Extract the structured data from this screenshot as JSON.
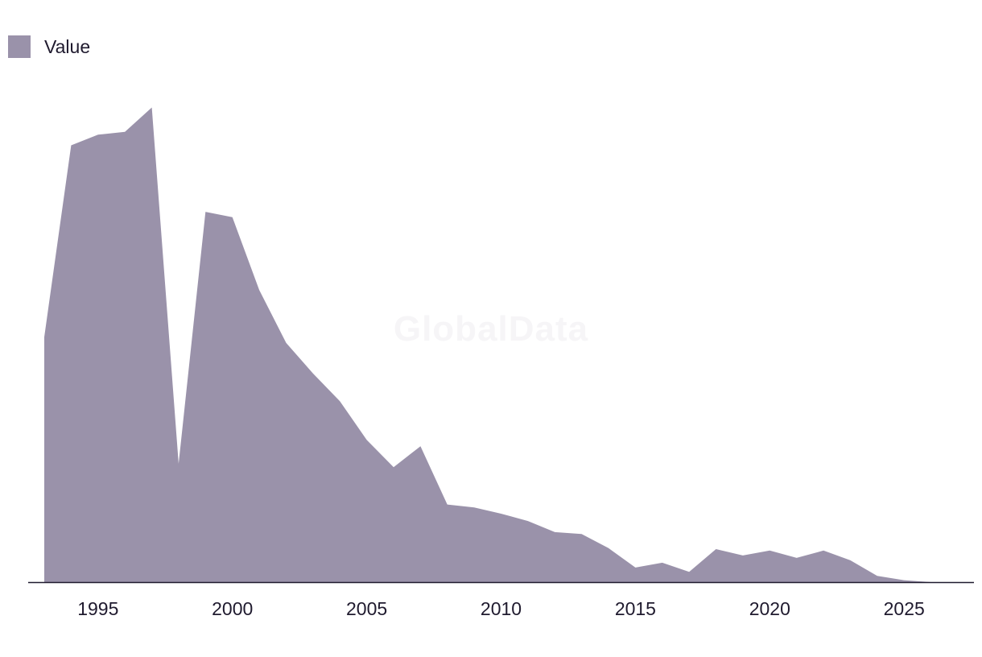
{
  "chart_data": {
    "type": "area",
    "title": "",
    "xlabel": "",
    "ylabel": "",
    "legend": {
      "position": "top-left",
      "entries": [
        "Value"
      ]
    },
    "series": [
      {
        "name": "Value",
        "color": "#9a92aa",
        "x": [
          1993,
          1994,
          1995,
          1996,
          1997,
          1998,
          1999,
          2000,
          2001,
          2002,
          2003,
          2004,
          2005,
          2006,
          2007,
          2008,
          2009,
          2010,
          2011,
          2012,
          2013,
          2014,
          2015,
          2016,
          2017,
          2018,
          2019,
          2020,
          2021,
          2022,
          2023,
          2024,
          2025,
          2026
        ],
        "values": [
          50.5,
          90.0,
          92.2,
          92.8,
          97.8,
          24.4,
          76.3,
          75.2,
          60.2,
          49.3,
          43.0,
          37.3,
          29.3,
          23.7,
          28.0,
          16.0,
          15.4,
          14.1,
          12.6,
          10.3,
          9.9,
          7.0,
          3.0,
          4.0,
          2.1,
          6.8,
          5.5,
          6.5,
          5.0,
          6.5,
          4.5,
          1.3,
          0.4,
          0.0
        ]
      }
    ],
    "x_ticks": [
      "1995",
      "2000",
      "2005",
      "2010",
      "2015",
      "2020",
      "2025"
    ],
    "xlim": [
      1992.4,
      2027.6
    ],
    "ylim": [
      0,
      110
    ],
    "grid": false
  },
  "watermark": "GlobalData"
}
